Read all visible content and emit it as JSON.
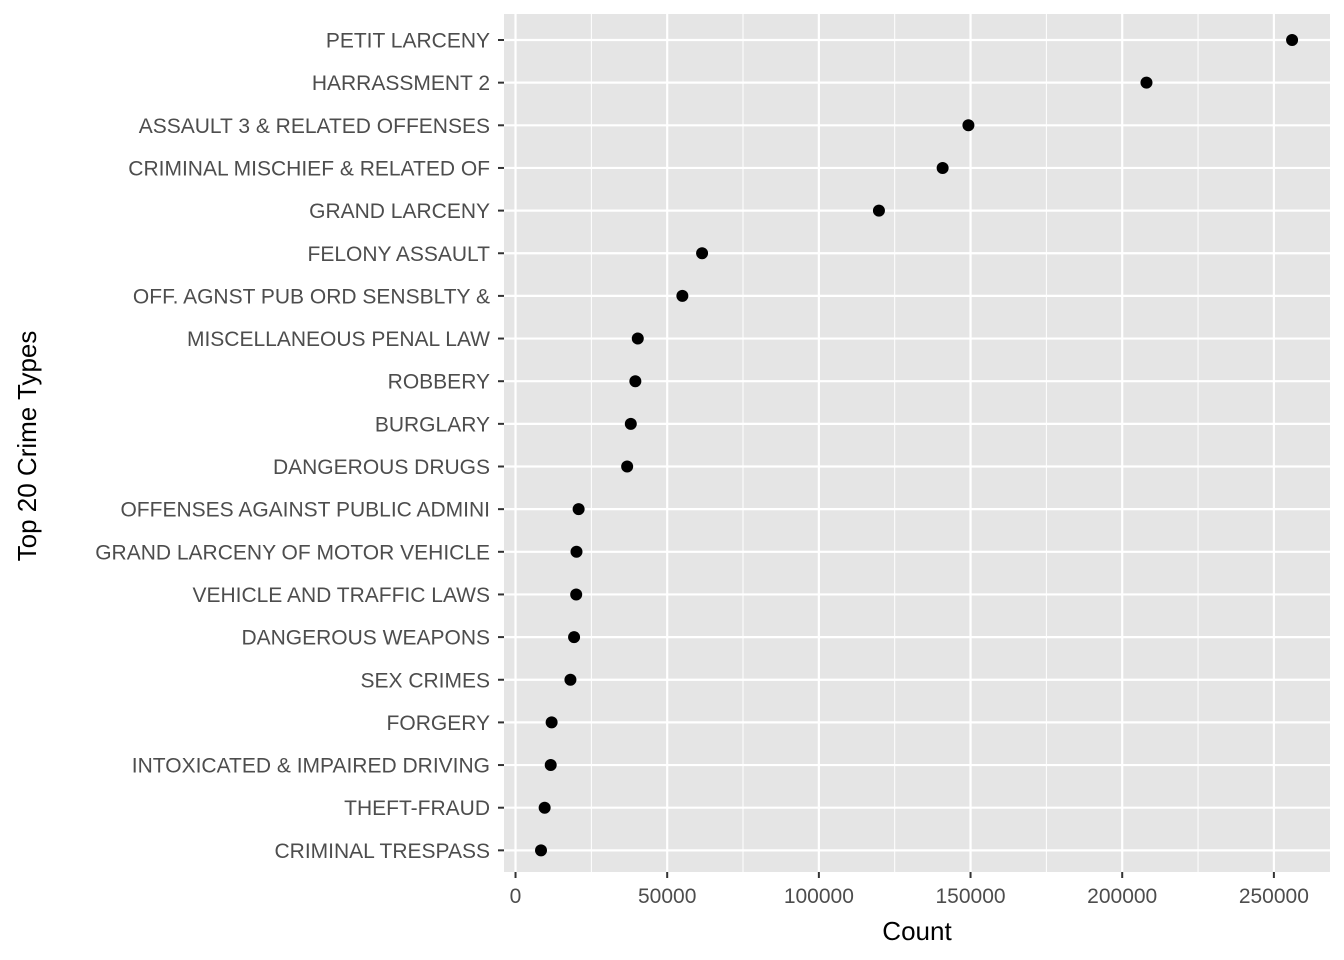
{
  "chart_data": {
    "type": "scatter",
    "xlabel": "Count",
    "ylabel": "Top 20 Crime Types",
    "xlim": [
      -3800,
      268500
    ],
    "x_ticks": [
      0,
      50000,
      100000,
      150000,
      200000,
      250000
    ],
    "x_tick_labels": [
      "0",
      "50000",
      "100000",
      "150000",
      "200000",
      "250000"
    ],
    "grid": true,
    "background": "#e5e5e5",
    "grid_color": "#ffffff",
    "point_color": "#000000",
    "categories": [
      "PETIT LARCENY",
      "HARRASSMENT 2",
      "ASSAULT 3 & RELATED OFFENSES",
      "CRIMINAL MISCHIEF & RELATED OF",
      "GRAND LARCENY",
      "FELONY ASSAULT",
      "OFF. AGNST PUB ORD SENSBLTY &",
      "MISCELLANEOUS PENAL LAW",
      "ROBBERY",
      "BURGLARY",
      "DANGEROUS DRUGS",
      "OFFENSES AGAINST PUBLIC ADMINI",
      "GRAND LARCENY OF MOTOR VEHICLE",
      "VEHICLE AND TRAFFIC LAWS",
      "DANGEROUS WEAPONS",
      "SEX CRIMES",
      "FORGERY",
      "INTOXICATED & IMPAIRED DRIVING",
      "THEFT-FRAUD",
      "CRIMINAL TRESPASS"
    ],
    "values": [
      256000,
      208000,
      149300,
      140800,
      119800,
      61500,
      55000,
      40300,
      39500,
      38000,
      36800,
      20800,
      20100,
      20000,
      19300,
      18100,
      11900,
      11600,
      9600,
      8400
    ]
  }
}
